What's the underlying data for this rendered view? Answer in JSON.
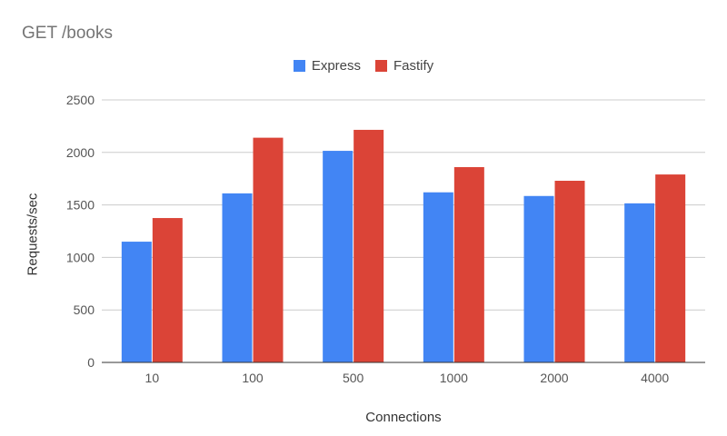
{
  "chart_data": {
    "type": "bar",
    "title": "GET /books",
    "xlabel": "Connections",
    "ylabel": "Requests/sec",
    "categories": [
      "10",
      "100",
      "500",
      "1000",
      "2000",
      "4000"
    ],
    "series": [
      {
        "name": "Express",
        "color": "#4285f4",
        "values": [
          1150,
          1610,
          2015,
          1620,
          1585,
          1515
        ]
      },
      {
        "name": "Fastify",
        "color": "#db4437",
        "values": [
          1375,
          2140,
          2215,
          1860,
          1730,
          1790
        ]
      }
    ],
    "ylim": [
      0,
      2500
    ],
    "yticks": [
      "0",
      "500",
      "1000",
      "1500",
      "2000",
      "2500"
    ],
    "grid": true,
    "legend_position": "top-center"
  }
}
